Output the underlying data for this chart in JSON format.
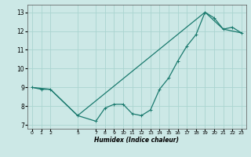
{
  "xlabel": "Humidex (Indice chaleur)",
  "ylabel": "",
  "bg_color": "#cce8e6",
  "line_color": "#1a7a6e",
  "grid_color": "#aad4d0",
  "line1_x": [
    0,
    1,
    2,
    5,
    7,
    8,
    9,
    10,
    11,
    12,
    13,
    14,
    15,
    16,
    17,
    18,
    19,
    20,
    21,
    22,
    23
  ],
  "line1_y": [
    9.0,
    8.9,
    8.9,
    7.5,
    7.2,
    7.9,
    8.1,
    8.1,
    7.6,
    7.5,
    7.8,
    8.9,
    9.5,
    10.4,
    11.2,
    11.8,
    13.0,
    12.7,
    12.1,
    12.2,
    11.9
  ],
  "line2_x": [
    0,
    2,
    5,
    19,
    21,
    23
  ],
  "line2_y": [
    9.0,
    8.9,
    7.5,
    13.0,
    12.1,
    11.9
  ],
  "xlim": [
    -0.5,
    23.5
  ],
  "ylim": [
    6.8,
    13.4
  ],
  "xticks": [
    0,
    1,
    2,
    5,
    7,
    8,
    9,
    10,
    11,
    12,
    13,
    14,
    15,
    16,
    17,
    18,
    19,
    20,
    21,
    22,
    23
  ],
  "yticks": [
    7,
    8,
    9,
    10,
    11,
    12,
    13
  ]
}
